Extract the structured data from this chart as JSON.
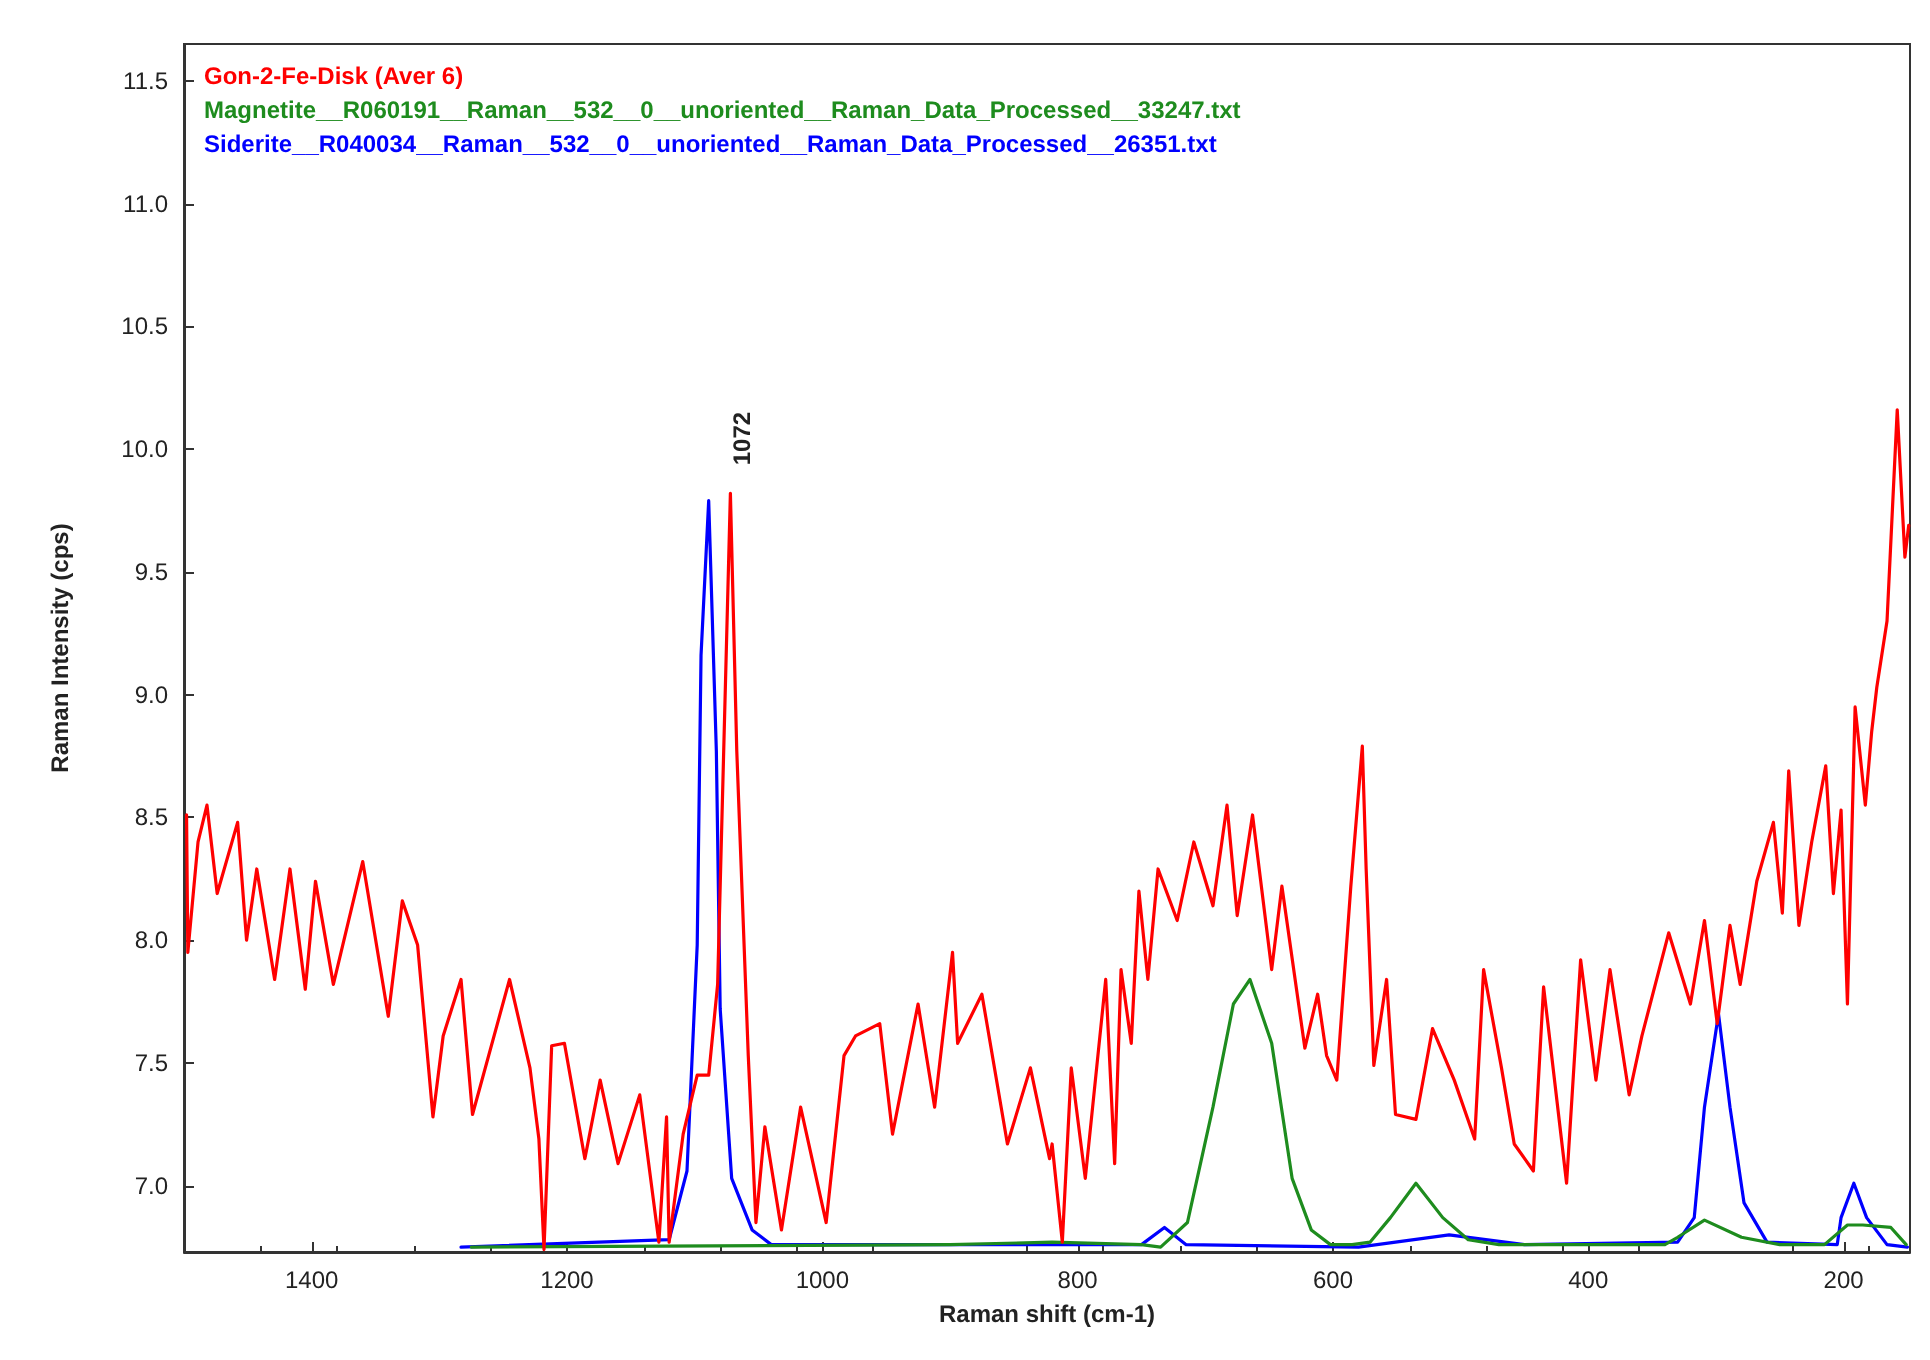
{
  "chart_data": {
    "type": "line",
    "xlabel": "Raman shift (cm-1)",
    "ylabel": "Raman Intensity (cps)",
    "xlim": [
      1500,
      148
    ],
    "ylim": [
      6.73,
      11.65
    ],
    "xticks": [
      {
        "value": 1400,
        "label": "1400"
      },
      {
        "value": 1200,
        "label": "1200"
      },
      {
        "value": 1000,
        "label": "1000"
      },
      800,
      600,
      400,
      200
    ],
    "yticks": [
      {
        "value": 7,
        "label": "7.0"
      },
      7.5,
      {
        "value": 8,
        "label": "8.0"
      },
      8.5,
      {
        "value": 9,
        "label": "9.0"
      },
      9.5,
      {
        "value": 10,
        "label": "10.0"
      },
      10.5,
      {
        "value": 11,
        "label": "11.0"
      },
      11.5
    ],
    "grid": false,
    "legend": "top left",
    "marker": "none",
    "line_style": "solid",
    "annotations": [
      {
        "text": "1072",
        "x": 1072,
        "y": 9.82
      }
    ],
    "series": [
      {
        "name": "Gon-2-Fe-Disk (Aver 6)",
        "color": "#ff0000",
        "x": [
          1498,
          1497,
          1489,
          1482,
          1474,
          1458,
          1451,
          1443,
          1429,
          1417,
          1405,
          1397,
          1383,
          1360,
          1340,
          1329,
          1317,
          1305,
          1297,
          1283,
          1274,
          1245,
          1229,
          1222,
          1218,
          1212,
          1202,
          1186,
          1174,
          1160,
          1143,
          1128,
          1122,
          1120,
          1109,
          1098,
          1089,
          1082,
          1072,
          1067,
          1058,
          1052,
          1045,
          1032,
          1017,
          997,
          983,
          974,
          955,
          945,
          925,
          912,
          898,
          894,
          875,
          855,
          837,
          822,
          820,
          812,
          805,
          794,
          778,
          771,
          766,
          758,
          752,
          745,
          737,
          722,
          709,
          694,
          683,
          675,
          663,
          648,
          640,
          622,
          612,
          605,
          597,
          586,
          577,
          574,
          568,
          558,
          551,
          535,
          522,
          505,
          489,
          482,
          468,
          458,
          443,
          435,
          417,
          406,
          394,
          383,
          368,
          358,
          337,
          320,
          309,
          299,
          289,
          281,
          268,
          255,
          248,
          243,
          235,
          225,
          214,
          208,
          202,
          197,
          191,
          183,
          178,
          174,
          166,
          158,
          152,
          149
        ],
        "values": [
          8.51,
          7.95,
          8.4,
          8.55,
          8.19,
          8.48,
          8.0,
          8.29,
          7.84,
          8.29,
          7.8,
          8.24,
          7.82,
          8.32,
          7.69,
          8.16,
          7.98,
          7.28,
          7.61,
          7.84,
          7.29,
          7.84,
          7.48,
          7.19,
          6.74,
          7.57,
          7.58,
          7.11,
          7.43,
          7.09,
          7.37,
          6.77,
          7.28,
          6.77,
          7.21,
          7.45,
          7.45,
          7.82,
          9.82,
          8.77,
          7.53,
          6.85,
          7.24,
          6.82,
          7.32,
          6.85,
          7.53,
          7.61,
          7.66,
          7.21,
          7.74,
          7.32,
          7.95,
          7.58,
          7.78,
          7.17,
          7.48,
          7.11,
          7.17,
          6.77,
          7.48,
          7.03,
          7.84,
          7.09,
          7.88,
          7.58,
          8.2,
          7.84,
          8.29,
          8.08,
          8.4,
          8.14,
          8.55,
          8.1,
          8.51,
          7.88,
          8.22,
          7.56,
          7.78,
          7.53,
          7.43,
          8.22,
          8.79,
          8.29,
          7.49,
          7.84,
          7.29,
          7.27,
          7.64,
          7.43,
          7.19,
          7.88,
          7.48,
          7.17,
          7.06,
          7.81,
          7.01,
          7.92,
          7.43,
          7.88,
          7.37,
          7.61,
          8.03,
          7.74,
          8.08,
          7.66,
          8.06,
          7.82,
          8.24,
          8.48,
          8.11,
          8.69,
          8.06,
          8.4,
          8.71,
          8.19,
          8.53,
          7.74,
          8.95,
          8.55,
          8.85,
          9.03,
          9.3,
          10.16,
          9.56,
          9.69
        ]
      },
      {
        "name": "Magnetite__R060191__Raman__532__0__unoriented__Raman_Data_Processed__33247.txt",
        "color": "#1e8c1e",
        "x": [
          1275,
          900,
          820,
          750,
          735,
          714,
          694,
          678,
          665,
          648,
          632,
          617,
          602,
          585,
          571,
          555,
          535,
          514,
          494,
          470,
          340,
          330,
          309,
          280,
          250,
          215,
          197,
          185,
          163,
          151
        ],
        "values": [
          6.75,
          6.76,
          6.77,
          6.76,
          6.75,
          6.85,
          7.32,
          7.74,
          7.84,
          7.58,
          7.03,
          6.82,
          6.76,
          6.76,
          6.77,
          6.87,
          7.01,
          6.87,
          6.78,
          6.76,
          6.76,
          6.79,
          6.86,
          6.79,
          6.76,
          6.76,
          6.84,
          6.84,
          6.83,
          6.76
        ]
      },
      {
        "name": "Siderite__R040034__Raman__532__0__unoriented__Raman_Data_Processed__26351.txt",
        "color": "#0000ff",
        "x": [
          1283,
          1120,
          1106,
          1098,
          1095,
          1089,
          1083,
          1080,
          1071,
          1055,
          1040,
          750,
          732,
          715,
          580,
          509,
          450,
          330,
          317,
          309,
          298,
          289,
          278,
          260,
          205,
          202,
          192,
          182,
          166,
          150
        ],
        "values": [
          6.75,
          6.78,
          7.06,
          7.98,
          9.16,
          9.79,
          8.77,
          7.72,
          7.03,
          6.82,
          6.76,
          6.76,
          6.83,
          6.76,
          6.75,
          6.8,
          6.76,
          6.77,
          6.87,
          7.32,
          7.7,
          7.32,
          6.93,
          6.77,
          6.76,
          6.87,
          7.01,
          6.87,
          6.76,
          6.75
        ]
      }
    ]
  }
}
